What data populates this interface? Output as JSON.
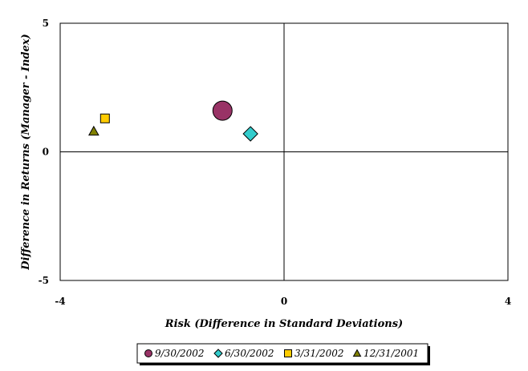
{
  "chart_data": {
    "type": "scatter",
    "title": "",
    "xlabel": "Risk (Difference in Standard Deviations)",
    "ylabel": "Difference in Returns (Manager - Index)",
    "xlim": [
      -4,
      4
    ],
    "ylim": [
      -5,
      5
    ],
    "x_ticks": [
      "-4",
      "0",
      "4"
    ],
    "y_ticks": [
      "5",
      "0",
      "-5"
    ],
    "grid": false,
    "legend_position": "bottom",
    "series": [
      {
        "name": "9/30/2002",
        "marker": "circle",
        "color": "#993366",
        "x": -1.1,
        "y": 1.6
      },
      {
        "name": "6/30/2002",
        "marker": "diamond",
        "color": "#33CCCC",
        "x": -0.6,
        "y": 0.7
      },
      {
        "name": "3/31/2002",
        "marker": "square",
        "color": "#FFCC00",
        "x": -3.2,
        "y": 1.3
      },
      {
        "name": "12/31/2001",
        "marker": "triangle",
        "color": "#808000",
        "x": -3.4,
        "y": 0.8
      }
    ]
  }
}
